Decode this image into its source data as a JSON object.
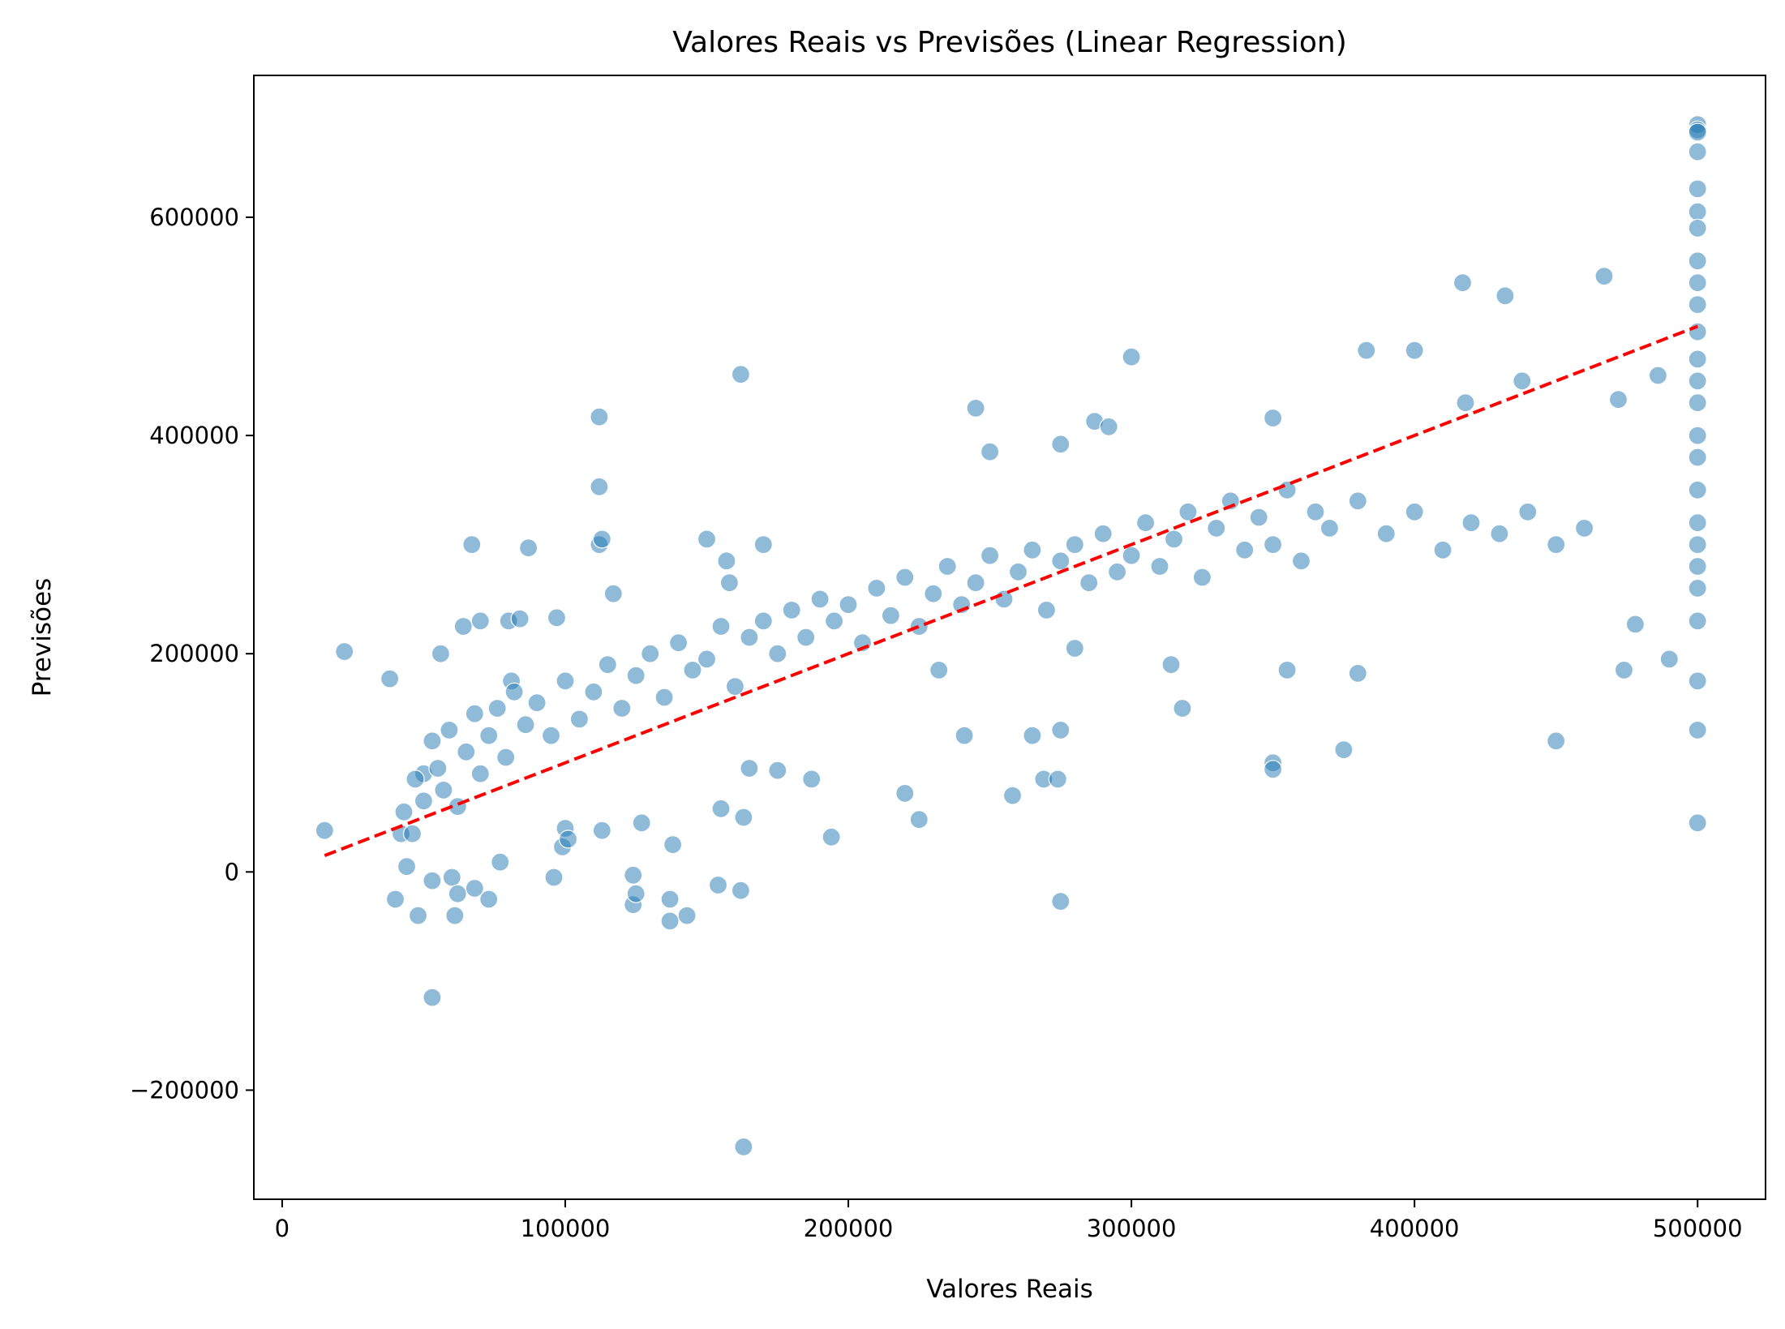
{
  "chart_data": {
    "type": "scatter",
    "title": "Valores Reais vs Previsões (Linear Regression)",
    "xlabel": "Valores Reais",
    "ylabel": "Previsões",
    "xlim": [
      -10000,
      524000
    ],
    "ylim": [
      -300000,
      730000
    ],
    "xticks": [
      0,
      100000,
      200000,
      300000,
      400000,
      500000
    ],
    "xtick_labels": [
      "0",
      "100000",
      "200000",
      "300000",
      "400000",
      "500000"
    ],
    "yticks": [
      -200000,
      0,
      200000,
      400000,
      600000
    ],
    "ytick_labels": [
      "−200000",
      "0",
      "200000",
      "400000",
      "600000"
    ],
    "grid": false,
    "colors": {
      "points": "#1f77b4",
      "reference_line": "#ff0000"
    },
    "reference_line": {
      "style": "dashed",
      "x": [
        14999,
        500001
      ],
      "y": [
        14999,
        500001
      ]
    },
    "series": [
      {
        "x": [
          15000,
          22000,
          38000,
          40000,
          42000,
          44000,
          46000,
          48000,
          50000,
          53000,
          53000,
          56000,
          60000,
          61000,
          62000,
          64000,
          67000,
          68000,
          70000,
          73000,
          77000,
          80000,
          81000,
          84000,
          87000,
          96000,
          97000,
          99000,
          100000,
          101000,
          112000,
          112000,
          112000,
          113000,
          113000,
          117000,
          124000,
          124000,
          125000,
          127000,
          137000,
          137000,
          138000,
          143000,
          150000,
          154000,
          155000,
          157000,
          158000,
          162000,
          162000,
          163000,
          163000,
          165000,
          170000,
          175000,
          187000,
          194000,
          220000,
          225000,
          232000,
          241000,
          245000,
          250000,
          258000,
          265000,
          269000,
          274000,
          275000,
          275000,
          275000,
          280000,
          287000,
          292000,
          300000,
          314000,
          318000,
          350000,
          350000,
          350000,
          355000,
          375000,
          380000,
          383000,
          400000,
          417000,
          418000,
          432000,
          438000,
          450000,
          467000,
          472000,
          474000,
          478000,
          486000,
          490000,
          500000,
          500000,
          500000,
          500000,
          500000,
          500000,
          500000,
          500000,
          500000,
          500000,
          500000,
          500000,
          500000,
          500000,
          500000,
          500000,
          500000,
          500000,
          500000,
          500000,
          500000,
          500000,
          500000,
          500000,
          500000
        ],
        "y": [
          38000,
          202000,
          177000,
          -25000,
          35000,
          5000,
          35000,
          -40000,
          90000,
          -115000,
          -8000,
          200000,
          -5000,
          -40000,
          -20000,
          225000,
          300000,
          -15000,
          230000,
          -25000,
          9000,
          230000,
          175000,
          232000,
          297000,
          -5000,
          233000,
          23000,
          40000,
          30000,
          417000,
          353000,
          300000,
          305000,
          38000,
          255000,
          -30000,
          -3000,
          -20000,
          45000,
          -45000,
          -25000,
          25000,
          -40000,
          305000,
          -12000,
          58000,
          285000,
          265000,
          456000,
          -17000,
          -252000,
          50000,
          95000,
          300000,
          93000,
          85000,
          32000,
          72000,
          48000,
          185000,
          125000,
          425000,
          385000,
          70000,
          125000,
          85000,
          85000,
          392000,
          130000,
          -27000,
          205000,
          413000,
          408000,
          472000,
          190000,
          150000,
          416000,
          100000,
          94000,
          185000,
          112000,
          182000,
          478000,
          478000,
          540000,
          430000,
          528000,
          450000,
          120000,
          546000,
          433000,
          185000,
          227000,
          455000,
          195000,
          685000,
          680000,
          678000,
          660000,
          626000,
          605000,
          590000,
          560000,
          540000,
          520000,
          495000,
          470000,
          450000,
          430000,
          400000,
          380000,
          350000,
          320000,
          300000,
          280000,
          260000,
          230000,
          175000,
          130000,
          45000
        ]
      },
      {
        "x": [
          43000,
          47000,
          50000,
          53000,
          55000,
          57000,
          59000,
          62000,
          65000,
          68000,
          70000,
          73000,
          76000,
          79000,
          82000,
          86000,
          90000,
          95000,
          100000,
          105000,
          110000,
          115000,
          120000,
          125000,
          130000,
          135000,
          140000,
          145000,
          150000,
          155000,
          160000,
          165000,
          170000,
          175000,
          180000,
          185000,
          190000,
          195000,
          200000,
          205000,
          210000,
          215000,
          220000,
          225000,
          230000,
          235000,
          240000,
          245000,
          250000,
          255000,
          260000,
          265000,
          270000,
          275000,
          280000,
          285000,
          290000,
          295000,
          300000,
          305000,
          310000,
          315000,
          320000,
          325000,
          330000,
          335000,
          340000,
          345000,
          350000,
          355000,
          360000,
          365000,
          370000,
          380000,
          390000,
          400000,
          410000,
          420000,
          430000,
          440000,
          450000,
          460000
        ],
        "y": [
          55000,
          85000,
          65000,
          120000,
          95000,
          75000,
          130000,
          60000,
          110000,
          145000,
          90000,
          125000,
          150000,
          105000,
          165000,
          135000,
          155000,
          125000,
          175000,
          140000,
          165000,
          190000,
          150000,
          180000,
          200000,
          160000,
          210000,
          185000,
          195000,
          225000,
          170000,
          215000,
          230000,
          200000,
          240000,
          215000,
          250000,
          230000,
          245000,
          210000,
          260000,
          235000,
          270000,
          225000,
          255000,
          280000,
          245000,
          265000,
          290000,
          250000,
          275000,
          295000,
          240000,
          285000,
          300000,
          265000,
          310000,
          275000,
          290000,
          320000,
          280000,
          305000,
          330000,
          270000,
          315000,
          340000,
          295000,
          325000,
          300000,
          350000,
          285000,
          330000,
          315000,
          340000,
          310000,
          330000,
          295000,
          320000,
          310000,
          330000,
          300000,
          315000
        ]
      }
    ]
  }
}
